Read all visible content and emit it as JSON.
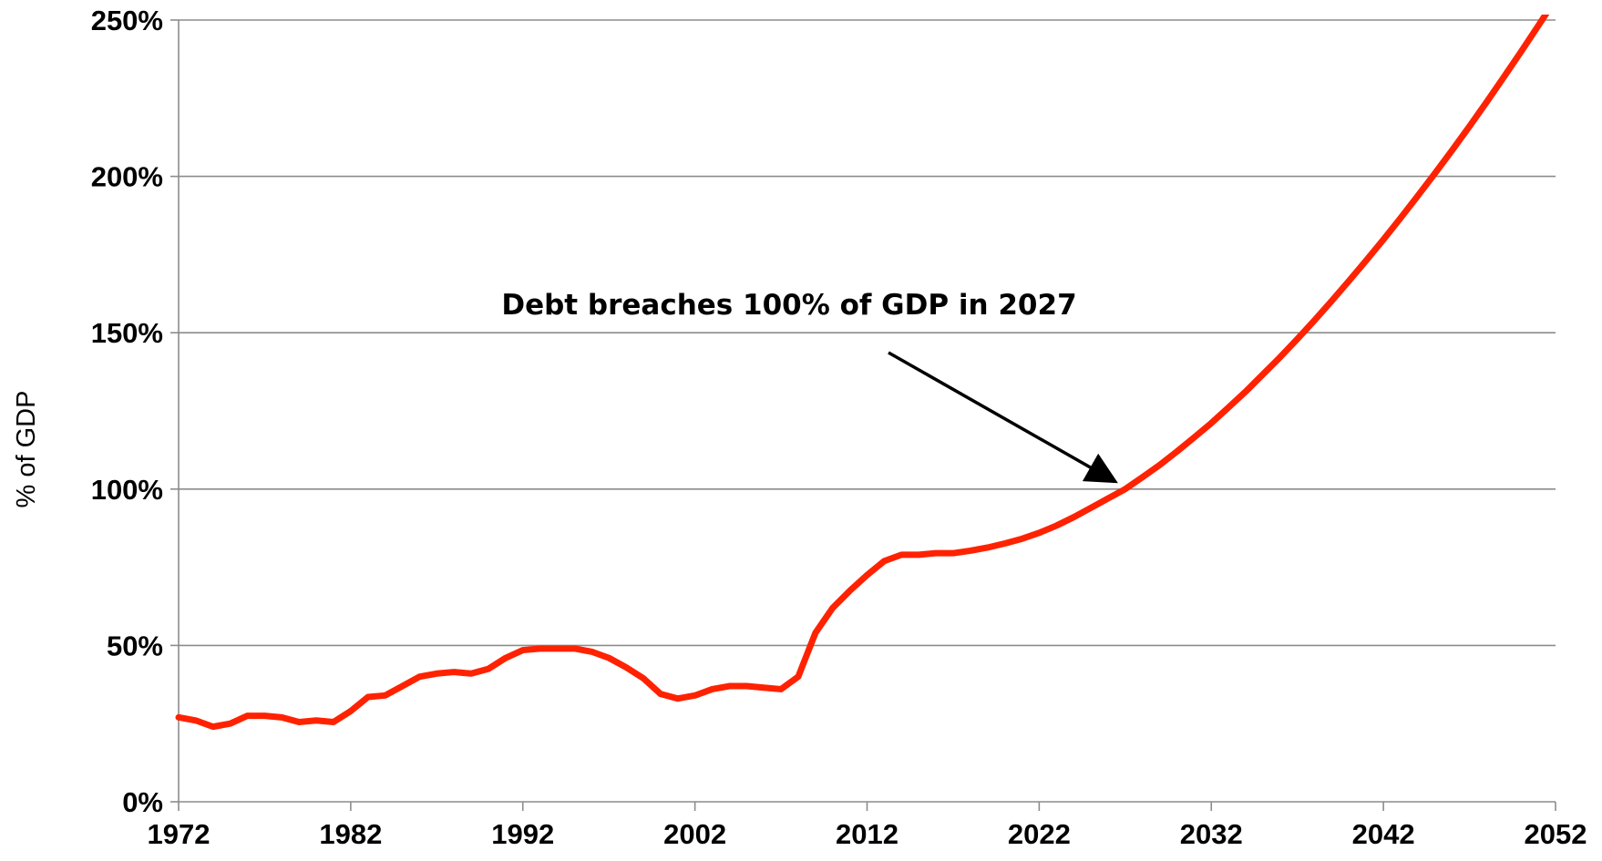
{
  "chart_data": {
    "type": "line",
    "title": "",
    "xlabel": "",
    "ylabel": "% of GDP",
    "xlim": [
      1972,
      2052
    ],
    "ylim": [
      0,
      250
    ],
    "grid": true,
    "legend": "none",
    "x_ticks": [
      "1972",
      "1982",
      "1992",
      "2002",
      "2012",
      "2022",
      "2032",
      "2042",
      "2052"
    ],
    "y_ticks": [
      "0%",
      "50%",
      "100%",
      "150%",
      "200%",
      "250%"
    ],
    "line_color": "#ff2200",
    "grid_color": "#8c8c8c",
    "annotation": {
      "text": "Debt breaches 100% of GDP in 2027",
      "arrow_target": {
        "x": 2027,
        "y": 100
      }
    },
    "series": [
      {
        "x": [
          1972,
          1973,
          1974,
          1975,
          1976,
          1977,
          1978,
          1979,
          1980,
          1981,
          1982,
          1983,
          1984,
          1985,
          1986,
          1987,
          1988,
          1989,
          1990,
          1991,
          1992,
          1993,
          1994,
          1995,
          1996,
          1997,
          1998,
          1999,
          2000,
          2001,
          2002,
          2003,
          2004,
          2005,
          2006,
          2007,
          2008,
          2009,
          2010,
          2011,
          2012,
          2013,
          2014,
          2015,
          2016,
          2017,
          2018,
          2019,
          2020,
          2021,
          2022,
          2023,
          2024,
          2025,
          2026,
          2027,
          2028,
          2029,
          2030,
          2031,
          2032,
          2033,
          2034,
          2035,
          2036,
          2037,
          2038,
          2039,
          2040,
          2041,
          2042,
          2043,
          2044,
          2045,
          2046,
          2047,
          2048,
          2049,
          2050,
          2051,
          2052
        ],
        "values": [
          27,
          26,
          24,
          25,
          27.5,
          27.5,
          27,
          25.5,
          26,
          25.5,
          29,
          33.5,
          34,
          37,
          40,
          41,
          41.5,
          41,
          42.5,
          46,
          48.5,
          49,
          49,
          49,
          48,
          46,
          43,
          39.5,
          34.5,
          33,
          34,
          36,
          37,
          37,
          36.5,
          36,
          40,
          54,
          62,
          67.5,
          72.5,
          77,
          79,
          79,
          79.5,
          79.5,
          80.3,
          81.3,
          82.6,
          84.1,
          86,
          88.3,
          91,
          94,
          97,
          100,
          103.8,
          107.7,
          112,
          116.5,
          121.1,
          126.1,
          131.2,
          136.7,
          142.2,
          148,
          154,
          160.2,
          166.6,
          173.1,
          179.8,
          186.7,
          193.8,
          201,
          208.4,
          216,
          223.8,
          231.8,
          239.9,
          248.2,
          256.6
        ]
      }
    ]
  }
}
